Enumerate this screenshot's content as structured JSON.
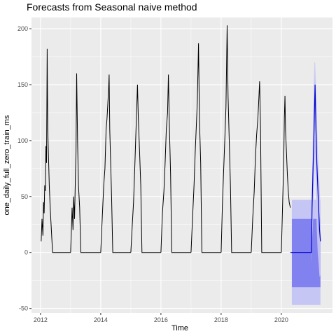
{
  "chart_data": {
    "type": "line",
    "title": "Forecasts from Seasonal naive method",
    "xlabel": "Time",
    "ylabel": "one_daily_full_zero_train_ms",
    "xlim": [
      2011.7,
      2021.7
    ],
    "ylim": [
      -54,
      210
    ],
    "x_ticks": [
      2012,
      2014,
      2016,
      2018,
      2020
    ],
    "y_ticks": [
      -50,
      0,
      50,
      100,
      150,
      200
    ],
    "grid": true,
    "legend": "none",
    "colors": {
      "panel_background": "#ebebeb",
      "grid_major": "#ffffff",
      "series": "#000000",
      "forecast": "#0000cc",
      "pi_95": "#c6c6f5",
      "pi_80": "#8181ef"
    },
    "seasonal_peaks": [
      {
        "peak_x": 2012.22,
        "peak_y": 182
      },
      {
        "peak_x": 2013.2,
        "peak_y": 160
      },
      {
        "peak_x": 2014.28,
        "peak_y": 159
      },
      {
        "peak_x": 2015.22,
        "peak_y": 150
      },
      {
        "peak_x": 2016.25,
        "peak_y": 159
      },
      {
        "peak_x": 2017.25,
        "peak_y": 187
      },
      {
        "peak_x": 2018.2,
        "peak_y": 203
      },
      {
        "peak_x": 2019.28,
        "peak_y": 153
      },
      {
        "peak_x": 2020.12,
        "peak_y": 140
      }
    ],
    "series": [
      {
        "values_description_free": true,
        "segments": [
          {
            "x": [
              2012.02,
              2012.05,
              2012.08,
              2012.1,
              2012.12,
              2012.14,
              2012.16,
              2012.18,
              2012.2,
              2012.22,
              2012.24,
              2012.26,
              2012.29,
              2012.32,
              2012.36,
              2012.4,
              2013.0
            ],
            "y": [
              10,
              30,
              15,
              45,
              35,
              60,
              55,
              95,
              80,
              182,
              110,
              90,
              60,
              40,
              20,
              0,
              0
            ]
          },
          {
            "x": [
              2013.0,
              2013.05,
              2013.08,
              2013.1,
              2013.13,
              2013.16,
              2013.18,
              2013.2,
              2013.23,
              2013.26,
              2013.3,
              2013.34,
              2014.0
            ],
            "y": [
              0,
              40,
              20,
              50,
              30,
              70,
              90,
              160,
              100,
              60,
              40,
              0,
              0
            ]
          },
          {
            "x": [
              2014.0,
              2014.05,
              2014.1,
              2014.14,
              2014.18,
              2014.21,
              2014.24,
              2014.26,
              2014.28,
              2014.3,
              2014.33,
              2014.36,
              2014.4,
              2015.0
            ],
            "y": [
              0,
              30,
              60,
              75,
              110,
              120,
              135,
              145,
              159,
              110,
              80,
              50,
              0,
              0
            ]
          },
          {
            "x": [
              2015.0,
              2015.05,
              2015.09,
              2015.13,
              2015.16,
              2015.19,
              2015.22,
              2015.25,
              2015.29,
              2015.33,
              2015.37,
              2016.0
            ],
            "y": [
              0,
              25,
              45,
              75,
              100,
              125,
              150,
              120,
              90,
              60,
              0,
              0
            ]
          },
          {
            "x": [
              2016.0,
              2016.05,
              2016.1,
              2016.14,
              2016.18,
              2016.22,
              2016.25,
              2016.28,
              2016.32,
              2016.36,
              2017.0
            ],
            "y": [
              0,
              35,
              55,
              80,
              110,
              125,
              159,
              115,
              70,
              0,
              0
            ]
          },
          {
            "x": [
              2017.0,
              2017.05,
              2017.1,
              2017.14,
              2017.18,
              2017.21,
              2017.25,
              2017.28,
              2017.32,
              2017.36,
              2018.0
            ],
            "y": [
              0,
              30,
              60,
              90,
              115,
              135,
              187,
              120,
              80,
              0,
              0
            ]
          },
          {
            "x": [
              2018.0,
              2018.04,
              2018.08,
              2018.12,
              2018.16,
              2018.2,
              2018.23,
              2018.27,
              2018.31,
              2018.35,
              2019.0
            ],
            "y": [
              0,
              40,
              70,
              100,
              130,
              203,
              140,
              100,
              60,
              0,
              0
            ]
          },
          {
            "x": [
              2019.0,
              2019.05,
              2019.1,
              2019.14,
              2019.18,
              2019.22,
              2019.25,
              2019.28,
              2019.31,
              2019.35,
              2020.0
            ],
            "y": [
              0,
              30,
              55,
              85,
              105,
              120,
              135,
              153,
              110,
              0,
              0
            ]
          },
          {
            "x": [
              2020.0,
              2020.04,
              2020.08,
              2020.1,
              2020.12,
              2020.14,
              2020.17,
              2020.2,
              2020.23,
              2020.26,
              2020.3
            ],
            "y": [
              0,
              40,
              80,
              120,
              140,
              110,
              90,
              70,
              55,
              45,
              40
            ]
          }
        ]
      },
      {
        "forecast": true,
        "x": [
          2020.3,
          2021.0,
          2021.02,
          2021.05,
          2021.08,
          2021.1,
          2021.12,
          2021.15,
          2021.18,
          2021.21,
          2021.24,
          2021.27,
          2021.3
        ],
        "y": [
          0,
          0,
          40,
          70,
          100,
          125,
          150,
          110,
          80,
          60,
          40,
          20,
          10
        ]
      }
    ],
    "intervals": [
      {
        "level": 95,
        "x": [
          2020.35,
          2021.3
        ],
        "lower": -47,
        "upper": 47
      },
      {
        "level": 80,
        "x": [
          2020.35,
          2021.3
        ],
        "lower": -31,
        "upper": 30
      }
    ],
    "forecast_interval_band": {
      "level": 95,
      "x": [
        2021.0,
        2021.02,
        2021.05,
        2021.08,
        2021.1,
        2021.12,
        2021.15,
        2021.18,
        2021.21,
        2021.24,
        2021.27,
        2021.3
      ],
      "lower": [
        -10,
        10,
        25,
        45,
        70,
        90,
        50,
        20,
        0,
        -10,
        -22,
        -20
      ],
      "upper": [
        40,
        70,
        110,
        150,
        170,
        170,
        150,
        120,
        95,
        75,
        60,
        40
      ]
    }
  }
}
